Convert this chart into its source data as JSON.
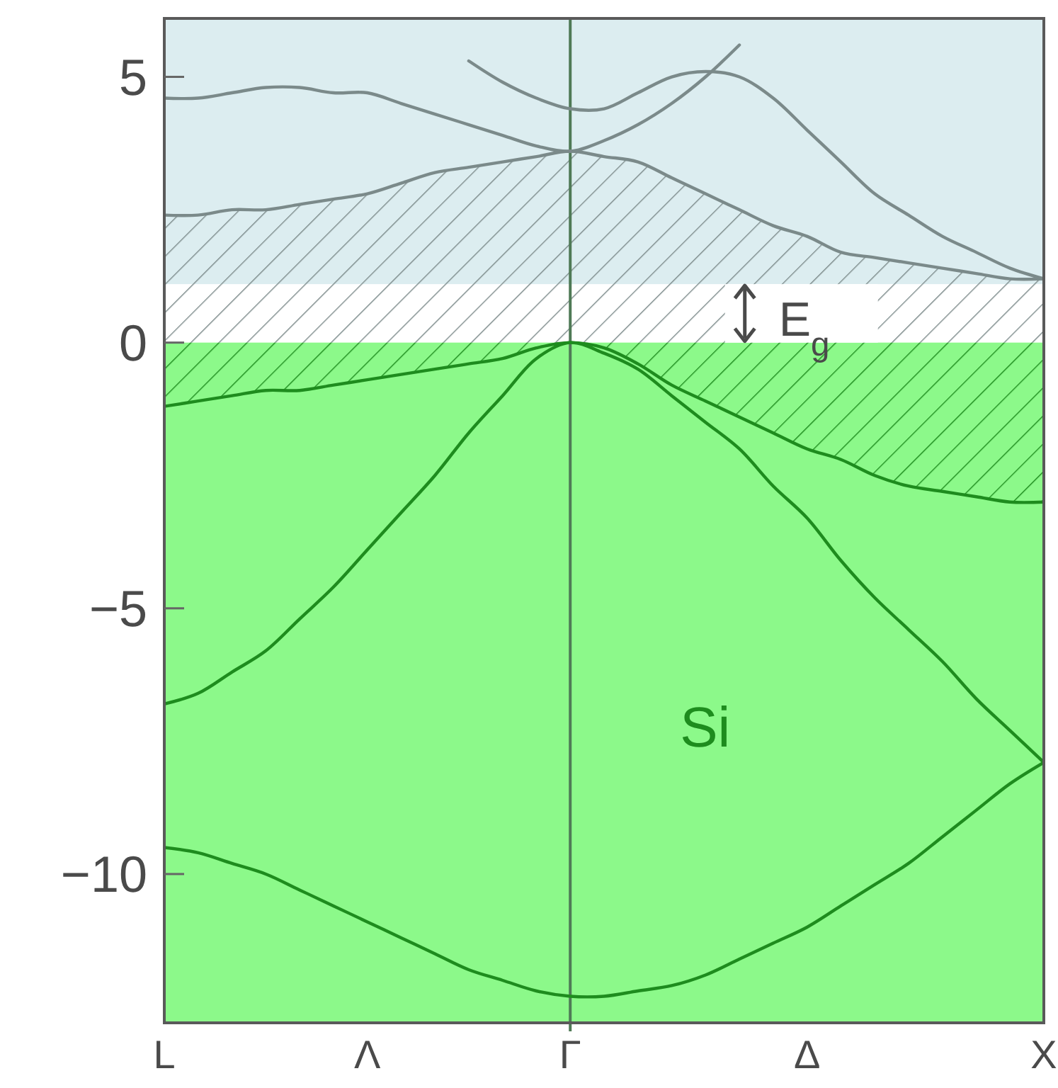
{
  "chart_data": {
    "type": "line",
    "title": "Si",
    "categories": [
      "L",
      null,
      null,
      null,
      null,
      null,
      "Λ",
      null,
      null,
      null,
      null,
      null,
      "Γ",
      null,
      null,
      null,
      null,
      null,
      null,
      "Δ",
      null,
      null,
      null,
      null,
      null,
      null,
      "X"
    ],
    "ylim": [
      -12.8,
      6.1
    ],
    "yticks": [
      -10,
      -5,
      0,
      5
    ],
    "bands": [
      {
        "axis": "y",
        "from": 1.1,
        "to": 6.1,
        "color": "#dcedf0"
      },
      {
        "axis": "y",
        "from": -12.8,
        "to": 0,
        "color": "#8cf98a"
      }
    ],
    "ref_lines": [
      {
        "axis": "x",
        "value": "Γ",
        "color": "#4f7a56"
      }
    ],
    "annotations": [
      "E$_{g}$"
    ],
    "series": [
      {
        "color": "#1e8c1e",
        "values": [
          -9.5,
          -9.6,
          -9.8,
          -10.0,
          -10.3,
          -10.6,
          -10.9,
          -11.2,
          -11.5,
          -11.8,
          -12.0,
          -12.2,
          -12.3,
          -12.3,
          -12.2,
          -12.1,
          -11.9,
          -11.6,
          -11.3,
          -11.0,
          -10.6,
          -10.2,
          -9.8,
          -9.3,
          -8.8,
          -8.3,
          -7.9
        ]
      },
      {
        "color": "#1e8c1e",
        "values": [
          -6.8,
          -6.6,
          -6.2,
          -5.8,
          -5.2,
          -4.6,
          -3.9,
          -3.2,
          -2.5,
          -1.7,
          -1.0,
          -0.3,
          0,
          -0.2,
          -0.5,
          -1.0,
          -1.5,
          -2.0,
          -2.7,
          -3.3,
          -4.1,
          -4.8,
          -5.4,
          -6.0,
          -6.7,
          -7.3,
          -7.9
        ]
      },
      {
        "color": "#1e8c1e",
        "values": [
          -1.2,
          -1.1,
          -1.0,
          -0.9,
          -0.9,
          -0.8,
          -0.7,
          -0.6,
          -0.5,
          -0.4,
          -0.3,
          -0.1,
          0,
          -0.1,
          -0.4,
          -0.8,
          -1.1,
          -1.4,
          -1.7,
          -2.0,
          -2.2,
          -2.5,
          -2.7,
          -2.8,
          -2.9,
          -3.0,
          -3.0
        ]
      },
      {
        "color": "#7b8a8a",
        "values": [
          2.4,
          2.4,
          2.5,
          2.5,
          2.6,
          2.7,
          2.8,
          3.0,
          3.2,
          3.3,
          3.4,
          3.5,
          3.6,
          3.5,
          3.4,
          3.1,
          2.8,
          2.5,
          2.2,
          2.0,
          1.7,
          1.6,
          1.5,
          1.4,
          1.3,
          1.2,
          1.2
        ]
      },
      {
        "color": "#7b8a8a",
        "values": [
          4.6,
          4.6,
          4.7,
          4.8,
          4.8,
          4.7,
          4.7,
          4.5,
          4.3,
          4.1,
          3.9,
          3.7,
          3.6,
          3.8,
          4.1,
          4.5,
          5.0,
          5.6,
          null,
          null,
          null,
          null,
          null,
          null,
          null,
          null,
          null
        ]
      },
      {
        "color": "#7b8a8a",
        "values": [
          null,
          null,
          null,
          null,
          null,
          null,
          null,
          null,
          null,
          5.3,
          4.9,
          4.6,
          4.4,
          4.4,
          4.7,
          5.0,
          5.1,
          5.0,
          4.6,
          4.0,
          3.4,
          2.8,
          2.4,
          2.0,
          1.7,
          1.4,
          1.2
        ]
      }
    ]
  }
}
